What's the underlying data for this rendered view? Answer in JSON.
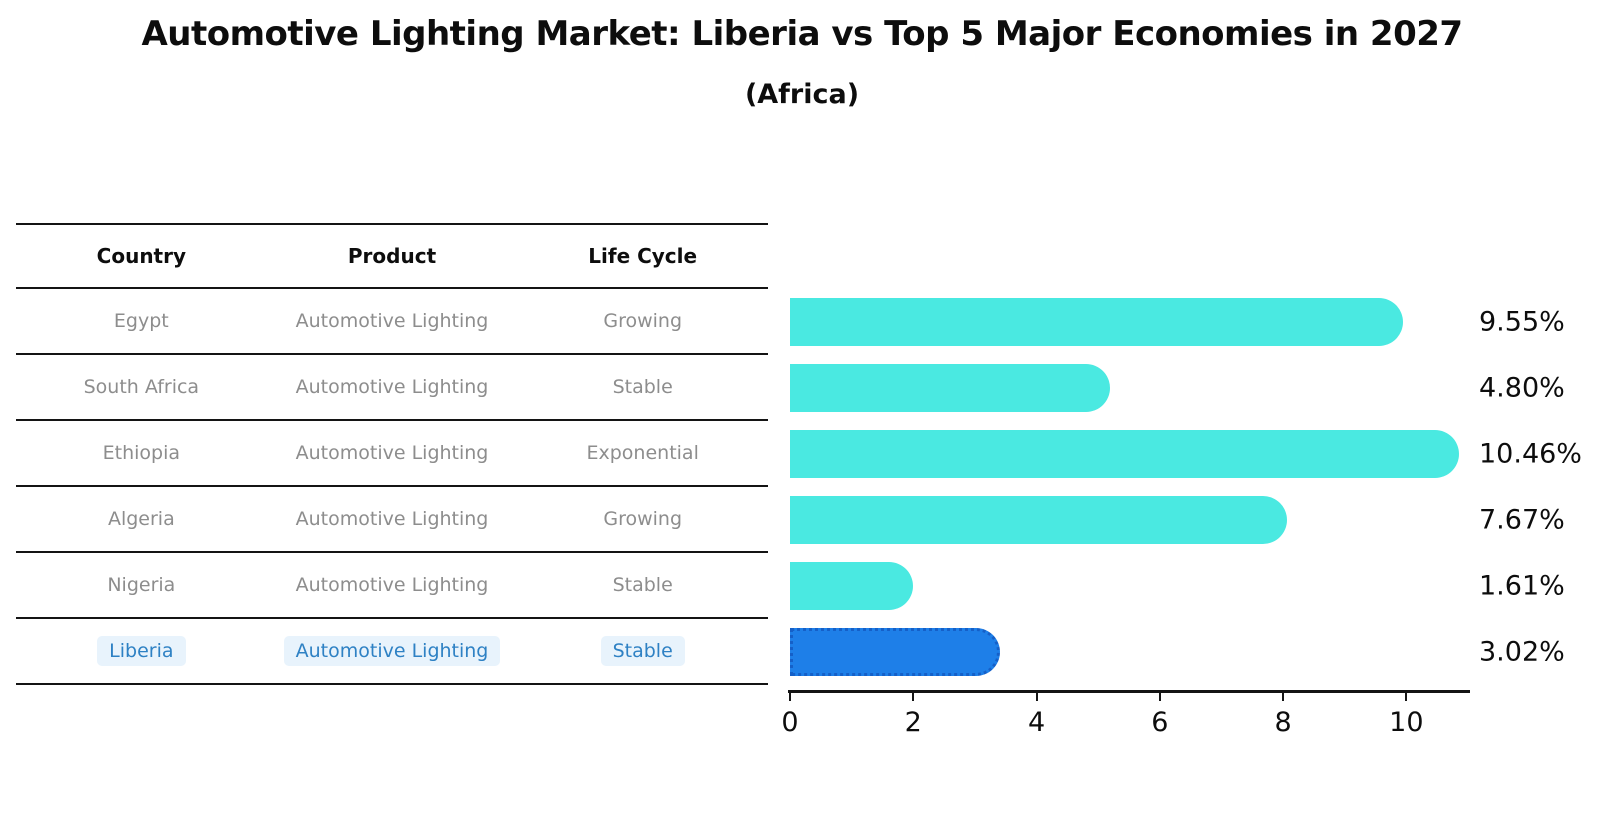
{
  "title": "Automotive Lighting Market: Liberia vs Top 5 Major Economies in 2027",
  "subtitle": "(Africa)",
  "table": {
    "headers": [
      "Country",
      "Product",
      "Life Cycle"
    ],
    "rows": [
      {
        "country": "Egypt",
        "product": "Automotive Lighting",
        "life_cycle": "Growing",
        "highlighted": false
      },
      {
        "country": "South Africa",
        "product": "Automotive Lighting",
        "life_cycle": "Stable",
        "highlighted": false
      },
      {
        "country": "Ethiopia",
        "product": "Automotive Lighting",
        "life_cycle": "Exponential",
        "highlighted": false
      },
      {
        "country": "Algeria",
        "product": "Automotive Lighting",
        "life_cycle": "Growing",
        "highlighted": false
      },
      {
        "country": "Nigeria",
        "product": "Automotive Lighting",
        "life_cycle": "Stable",
        "highlighted": false
      },
      {
        "country": "Liberia",
        "product": "Automotive Lighting",
        "life_cycle": "Stable",
        "highlighted": true
      }
    ]
  },
  "chart_data": {
    "type": "bar",
    "orientation": "horizontal",
    "categories": [
      "Egypt",
      "South Africa",
      "Ethiopia",
      "Algeria",
      "Nigeria",
      "Liberia"
    ],
    "values": [
      9.55,
      4.8,
      10.46,
      7.67,
      1.61,
      3.02
    ],
    "value_labels": [
      "9.55%",
      "4.80%",
      "10.46%",
      "7.67%",
      "1.61%",
      "3.02%"
    ],
    "highlight_category": "Liberia",
    "x_ticks": [
      "0",
      "2",
      "4",
      "6",
      "8",
      "10"
    ],
    "x_tick_values": [
      0,
      2,
      4,
      6,
      8,
      10
    ],
    "xlim": [
      0,
      11
    ],
    "grid": false,
    "legend": "none",
    "colors": {
      "bar_default": "#4ae9e1",
      "bar_highlight": "#1e7fe8",
      "bar_highlight_border": "#1560c8",
      "highlight_text": "#2e81c4",
      "highlight_cell_bg": "#e8f3fc",
      "table_text": "#8d8d8d",
      "axis_text": "#0d0d0d"
    }
  }
}
